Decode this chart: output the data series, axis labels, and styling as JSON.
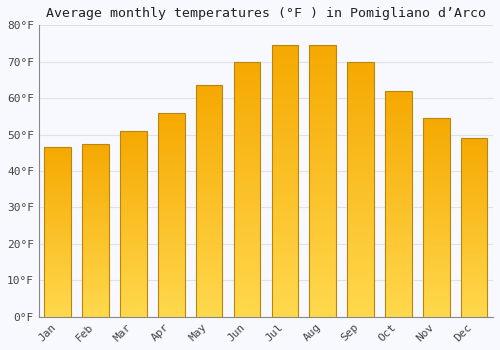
{
  "title": "Average monthly temperatures (°F ) in Pomigliano d’Arco",
  "months": [
    "Jan",
    "Feb",
    "Mar",
    "Apr",
    "May",
    "Jun",
    "Jul",
    "Aug",
    "Sep",
    "Oct",
    "Nov",
    "Dec"
  ],
  "values": [
    46.5,
    47.5,
    51.0,
    56.0,
    63.5,
    70.0,
    74.5,
    74.5,
    70.0,
    62.0,
    54.5,
    49.0
  ],
  "bar_color_top": "#F5A800",
  "bar_color_bottom": "#FFD84D",
  "bar_edge_color": "#B8860B",
  "background_color": "#F8F8FF",
  "grid_color": "#E0E0E8",
  "ylim": [
    0,
    80
  ],
  "yticks": [
    0,
    10,
    20,
    30,
    40,
    50,
    60,
    70,
    80
  ],
  "ytick_labels": [
    "0°F",
    "10°F",
    "20°F",
    "30°F",
    "40°F",
    "50°F",
    "60°F",
    "70°F",
    "80°F"
  ],
  "title_fontsize": 9.5,
  "tick_fontsize": 8,
  "font_family": "monospace",
  "bar_width": 0.7,
  "edge_linewidth": 0.8
}
